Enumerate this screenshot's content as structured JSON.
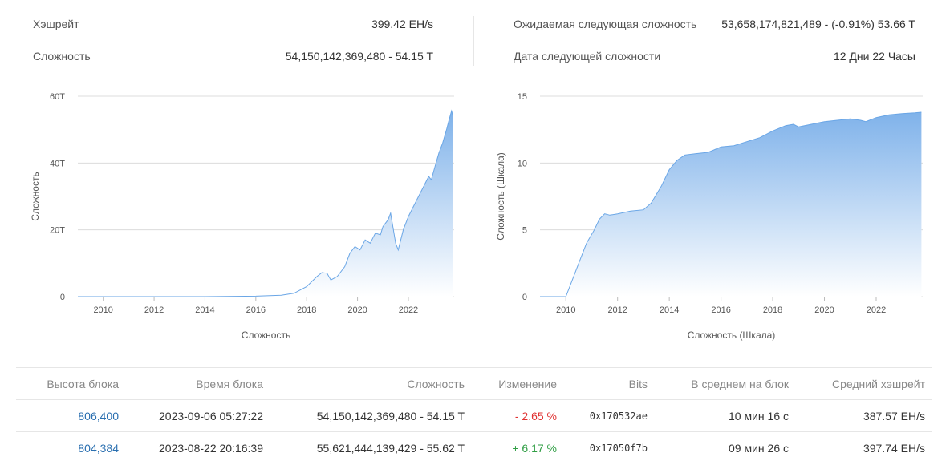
{
  "stats": {
    "hashrate_label": "Хэшрейт",
    "hashrate_value": "399.42 EH/s",
    "difficulty_label": "Сложность",
    "difficulty_value": "54,150,142,369,480 - 54.15 T",
    "expected_label": "Ожидаемая следующая сложность",
    "expected_value": "53,658,174,821,489 - (-0.91%) 53.66 T",
    "next_date_label": "Дата следующей сложности",
    "next_date_value": "12 Дни 22 Часы"
  },
  "colors": {
    "fill_top": "#7fb2ea",
    "fill_bottom": "#ffffff",
    "line": "#6aa6e6",
    "link": "#2a6fb0",
    "negative": "#e03131",
    "positive": "#2f9e44"
  },
  "chart_data": [
    {
      "type": "area",
      "title": "",
      "xlabel": "Сложность",
      "ylabel": "Сложность",
      "x_ticks": [
        "2010",
        "2012",
        "2014",
        "2016",
        "2018",
        "2020",
        "2022"
      ],
      "y_ticks": [
        "0",
        "20T",
        "40T",
        "60T"
      ],
      "xlim": [
        2009.0,
        2023.8
      ],
      "ylim": [
        0,
        60
      ],
      "grid": true,
      "points": [
        [
          2009.0,
          0
        ],
        [
          2012,
          0
        ],
        [
          2014,
          0.01
        ],
        [
          2016,
          0.15
        ],
        [
          2017,
          0.4
        ],
        [
          2017.5,
          1
        ],
        [
          2018,
          3
        ],
        [
          2018.4,
          6
        ],
        [
          2018.6,
          7.2
        ],
        [
          2018.8,
          7
        ],
        [
          2018.95,
          5
        ],
        [
          2019.2,
          6
        ],
        [
          2019.5,
          9
        ],
        [
          2019.7,
          13
        ],
        [
          2019.9,
          15
        ],
        [
          2020.1,
          14
        ],
        [
          2020.3,
          17
        ],
        [
          2020.5,
          16
        ],
        [
          2020.7,
          19
        ],
        [
          2020.9,
          18.5
        ],
        [
          2021.0,
          21
        ],
        [
          2021.2,
          23
        ],
        [
          2021.3,
          25
        ],
        [
          2021.5,
          16
        ],
        [
          2021.6,
          14
        ],
        [
          2021.8,
          20
        ],
        [
          2022.0,
          24
        ],
        [
          2022.2,
          27
        ],
        [
          2022.4,
          30
        ],
        [
          2022.6,
          33
        ],
        [
          2022.8,
          36
        ],
        [
          2022.9,
          35
        ],
        [
          2023.05,
          39
        ],
        [
          2023.2,
          43
        ],
        [
          2023.35,
          46
        ],
        [
          2023.5,
          50
        ],
        [
          2023.6,
          53
        ],
        [
          2023.7,
          55.6
        ],
        [
          2023.75,
          54.15
        ]
      ]
    },
    {
      "type": "area",
      "title": "",
      "xlabel": "Сложность (Шкала)",
      "ylabel": "Сложность (Шкала)",
      "x_ticks": [
        "2010",
        "2012",
        "2014",
        "2016",
        "2018",
        "2020",
        "2022"
      ],
      "y_ticks": [
        "0",
        "5",
        "10",
        "15"
      ],
      "xlim": [
        2009.0,
        2023.8
      ],
      "ylim": [
        0,
        15
      ],
      "grid": true,
      "points": [
        [
          2009.0,
          0
        ],
        [
          2010.0,
          0
        ],
        [
          2010.2,
          1
        ],
        [
          2010.5,
          2.5
        ],
        [
          2010.8,
          4
        ],
        [
          2011.1,
          5
        ],
        [
          2011.3,
          5.8
        ],
        [
          2011.5,
          6.2
        ],
        [
          2011.7,
          6.1
        ],
        [
          2012.0,
          6.2
        ],
        [
          2012.5,
          6.4
        ],
        [
          2013.0,
          6.5
        ],
        [
          2013.3,
          7
        ],
        [
          2013.7,
          8.3
        ],
        [
          2014.0,
          9.5
        ],
        [
          2014.3,
          10.2
        ],
        [
          2014.6,
          10.6
        ],
        [
          2015.0,
          10.7
        ],
        [
          2015.5,
          10.8
        ],
        [
          2016.0,
          11.2
        ],
        [
          2016.5,
          11.3
        ],
        [
          2017.0,
          11.6
        ],
        [
          2017.5,
          11.9
        ],
        [
          2018.0,
          12.4
        ],
        [
          2018.5,
          12.8
        ],
        [
          2018.8,
          12.9
        ],
        [
          2019.0,
          12.7
        ],
        [
          2019.5,
          12.9
        ],
        [
          2020.0,
          13.1
        ],
        [
          2020.5,
          13.2
        ],
        [
          2021.0,
          13.3
        ],
        [
          2021.4,
          13.2
        ],
        [
          2021.6,
          13.1
        ],
        [
          2022.0,
          13.4
        ],
        [
          2022.5,
          13.6
        ],
        [
          2023.0,
          13.7
        ],
        [
          2023.5,
          13.75
        ],
        [
          2023.75,
          13.8
        ]
      ]
    }
  ],
  "table": {
    "headers": [
      "Высота блока",
      "Время блока",
      "Сложность",
      "Изменение",
      "Bits",
      "В среднем на блок",
      "Средний хэшрейт"
    ],
    "rows": [
      {
        "height": "806,400",
        "time": "2023-09-06 05:27:22",
        "difficulty": "54,150,142,369,480 - 54.15 T",
        "change": "- 2.65 %",
        "bits": "0x170532ae",
        "avg_block": "10 мин 16 с",
        "avg_hash": "387.57 EH/s"
      },
      {
        "height": "804,384",
        "time": "2023-08-22 20:16:39",
        "difficulty": "55,621,444,139,429 - 55.62 T",
        "change": "+ 6.17 %",
        "bits": "0x17050f7b",
        "avg_block": "09 мин 26 с",
        "avg_hash": "397.74 EH/s"
      }
    ]
  }
}
